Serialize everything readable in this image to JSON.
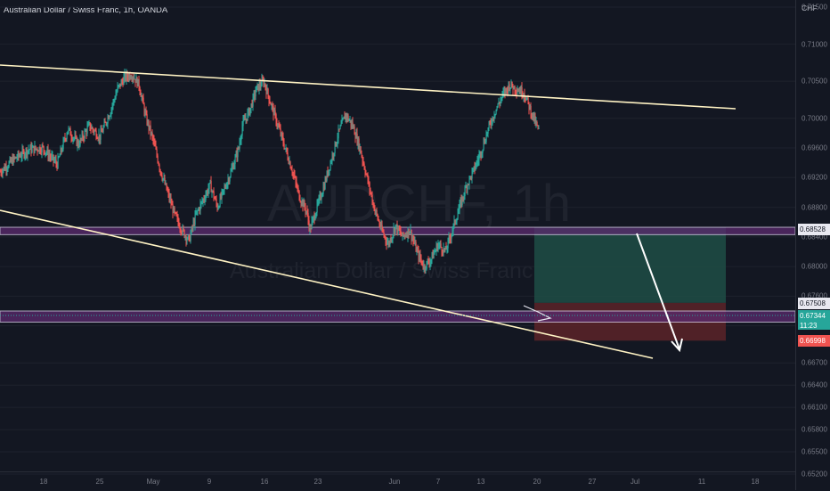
{
  "header": {
    "title": "Australian Dollar / Swiss Franc, 1h, OANDA"
  },
  "watermark": {
    "symbol": "AUDCHF, 1h",
    "name": "Australian Dollar / Swiss Franc"
  },
  "axis": {
    "unit": "CHF",
    "y_ticks": [
      "0.71500",
      "0.71000",
      "0.70500",
      "0.70000",
      "0.69600",
      "0.69200",
      "0.68800",
      "0.68400",
      "0.68000",
      "0.67600",
      "0.67200",
      "0.66700",
      "0.66400",
      "0.66100",
      "0.65800",
      "0.65500",
      "0.65200"
    ],
    "x_ticks": [
      "18",
      "25",
      "May",
      "9",
      "16",
      "23",
      "Jun",
      "7",
      "13",
      "20",
      "27",
      "Jul",
      "11",
      "18"
    ]
  },
  "price_labels": {
    "resistance": "0.68528",
    "entry": "0.67508",
    "current": "0.67344",
    "countdown": "11:23",
    "stop": "0.66998"
  },
  "colors": {
    "background": "#131722",
    "up": "#26a69a",
    "down": "#ef5350",
    "trendline": "#fff3c4",
    "zone": "#5b2a6e",
    "target_zone": "#1e4d45",
    "stop_zone": "#5c2328"
  },
  "chart_data": {
    "type": "candlestick",
    "title": "Australian Dollar / Swiss Franc, 1h, OANDA",
    "ylabel": "CHF",
    "ylim": [
      0.652,
      0.715
    ],
    "x_labels": [
      "18",
      "25",
      "May",
      "9",
      "16",
      "23",
      "Jun",
      "7",
      "13",
      "20",
      "27",
      "Jul",
      "11",
      "18"
    ],
    "close_path": [
      [
        0,
        0.6928
      ],
      [
        4,
        0.6945
      ],
      [
        8,
        0.6958
      ],
      [
        12,
        0.696
      ],
      [
        16,
        0.6938
      ],
      [
        19,
        0.6985
      ],
      [
        22,
        0.6965
      ],
      [
        25,
        0.699
      ],
      [
        28,
        0.6975
      ],
      [
        31,
        0.701
      ],
      [
        33,
        0.704
      ],
      [
        35,
        0.7055
      ],
      [
        37,
        0.706
      ],
      [
        39,
        0.7045
      ],
      [
        41,
        0.7
      ],
      [
        43,
        0.697
      ],
      [
        45,
        0.693
      ],
      [
        47,
        0.69
      ],
      [
        49,
        0.687
      ],
      [
        51,
        0.685
      ],
      [
        53,
        0.6835
      ],
      [
        55,
        0.687
      ],
      [
        57,
        0.689
      ],
      [
        59,
        0.691
      ],
      [
        61,
        0.688
      ],
      [
        63,
        0.6905
      ],
      [
        65,
        0.693
      ],
      [
        67,
        0.696
      ],
      [
        68,
        0.699
      ],
      [
        70,
        0.701
      ],
      [
        72,
        0.704
      ],
      [
        74,
        0.705
      ],
      [
        76,
        0.702
      ],
      [
        78,
        0.699
      ],
      [
        80,
        0.696
      ],
      [
        82,
        0.693
      ],
      [
        84,
        0.6895
      ],
      [
        86,
        0.6875
      ],
      [
        87,
        0.685
      ],
      [
        89,
        0.688
      ],
      [
        91,
        0.691
      ],
      [
        93,
        0.6945
      ],
      [
        95,
        0.698
      ],
      [
        97,
        0.7005
      ],
      [
        99,
        0.699
      ],
      [
        101,
        0.696
      ],
      [
        103,
        0.692
      ],
      [
        105,
        0.688
      ],
      [
        107,
        0.685
      ],
      [
        109,
        0.683
      ],
      [
        111,
        0.6855
      ],
      [
        113,
        0.684
      ],
      [
        115,
        0.685
      ],
      [
        117,
        0.682
      ],
      [
        119,
        0.68
      ],
      [
        121,
        0.681
      ],
      [
        123,
        0.683
      ],
      [
        125,
        0.682
      ],
      [
        127,
        0.685
      ],
      [
        129,
        0.688
      ],
      [
        131,
        0.691
      ],
      [
        133,
        0.693
      ],
      [
        135,
        0.6955
      ],
      [
        137,
        0.6985
      ],
      [
        139,
        0.701
      ],
      [
        141,
        0.703
      ],
      [
        143,
        0.7045
      ],
      [
        145,
        0.704
      ],
      [
        147,
        0.7035
      ],
      [
        149,
        0.701
      ],
      [
        151,
        0.6985
      ],
      [
        153,
        0.697
      ],
      [
        155,
        0.6945
      ],
      [
        157,
        0.6925
      ],
      [
        159,
        0.6895
      ],
      [
        161,
        0.688
      ],
      [
        163,
        0.691
      ],
      [
        165,
        0.6935
      ],
      [
        167,
        0.6975
      ],
      [
        169,
        0.7
      ],
      [
        171,
        0.687
      ],
      [
        173,
        0.683
      ],
      [
        175,
        0.679
      ],
      [
        177,
        0.676
      ],
      [
        179,
        0.674
      ],
      [
        181,
        0.672
      ],
      [
        183,
        0.673
      ],
      [
        185,
        0.6734
      ]
    ],
    "lines": [
      {
        "name": "",
        "from": [
          0,
          0.708
        ],
        "to": [
          216,
          0.7015
        ]
      },
      {
        "name": "",
        "from": [
          0,
          0.6885
        ],
        "to": [
          192,
          0.668
        ]
      },
      {
        "name": "",
        "from": [
          187,
          0.6843
        ],
        "to": [
          200,
          0.6715
        ]
      }
    ],
    "zones": [
      {
        "low": 0.6843,
        "high": 0.6853
      },
      {
        "low": 0.6725,
        "high": 0.674
      }
    ],
    "position": {
      "entry": 0.6751,
      "target": 0.6853,
      "stop": 0.67
    }
  }
}
